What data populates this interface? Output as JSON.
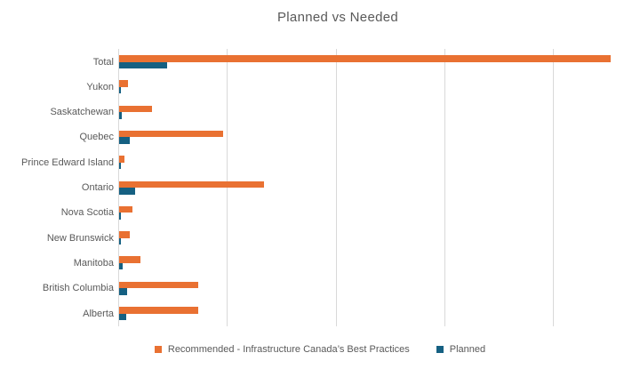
{
  "title": "Planned vs Needed",
  "colors": {
    "recommended": "#E97132",
    "planned": "#156082",
    "gridline": "#D9D9D9",
    "text": "#595959",
    "background": "#FFFFFF"
  },
  "chart_data": {
    "type": "bar",
    "orientation": "horizontal",
    "title": "Planned vs Needed",
    "categories": [
      "Total",
      "Yukon",
      "Saskatchewan",
      "Quebec",
      "Prince Edward Island",
      "Ontario",
      "Nova Scotia",
      "New Brunswick",
      "Manitoba",
      "British Columbia",
      "Alberta"
    ],
    "series": [
      {
        "name": "Recommended - Infrastructure Canada’s Best Practices",
        "color": "#E97132",
        "values": [
          4.52,
          0.08,
          0.3,
          0.96,
          0.045,
          1.33,
          0.12,
          0.1,
          0.2,
          0.73,
          0.73
        ]
      },
      {
        "name": "Planned",
        "color": "#156082",
        "values": [
          0.44,
          0.015,
          0.025,
          0.1,
          0.012,
          0.15,
          0.02,
          0.015,
          0.03,
          0.07,
          0.068
        ]
      }
    ],
    "xlabel": "",
    "ylabel": "",
    "xlim": [
      0,
      4.8
    ],
    "gridline_interval": 1,
    "x_tick_labels_visible": false,
    "x_unit": "gridline units (axis unlabeled)",
    "grid": true,
    "legend_position": "bottom"
  }
}
